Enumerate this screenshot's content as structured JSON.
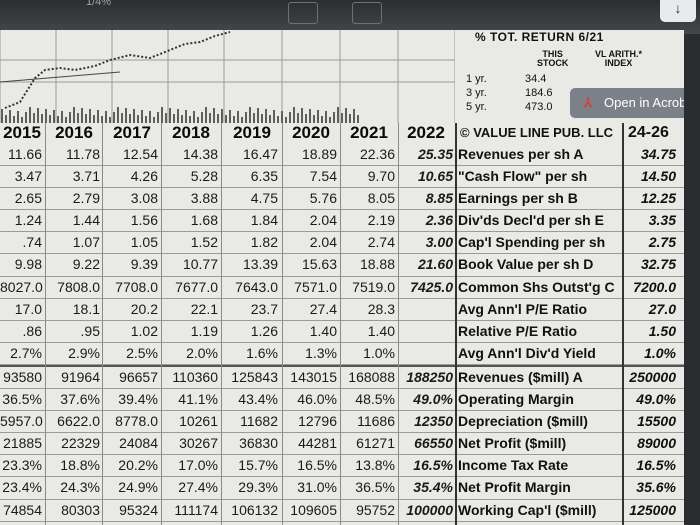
{
  "bezel": {
    "label": "1/4%"
  },
  "returns_box": {
    "title": "% TOT. RETURN 6/21",
    "col1_header": "THIS\nSTOCK",
    "col2_header": "VL ARITH.*\nINDEX",
    "rows": [
      {
        "period": "1 yr.",
        "value": "34.4"
      },
      {
        "period": "3 yr.",
        "value": "184.6"
      },
      {
        "period": "5 yr.",
        "value": "473.0"
      }
    ]
  },
  "acrobat": {
    "label": "Open in Acrob"
  },
  "years": [
    "2015",
    "2016",
    "2017",
    "2018",
    "2019",
    "2020",
    "2021",
    "2022"
  ],
  "publisher": "© VALUE LINE PUB. LLC",
  "projection_header": "24-26",
  "rows": [
    {
      "cells": [
        "11.66",
        "11.78",
        "12.54",
        "14.38",
        "16.47",
        "18.89",
        "22.36",
        "25.35"
      ],
      "label": "Revenues per sh A",
      "proj": "34.75"
    },
    {
      "cells": [
        "3.47",
        "3.71",
        "4.26",
        "5.28",
        "6.35",
        "7.54",
        "9.70",
        "10.65"
      ],
      "label": "\"Cash Flow\" per sh",
      "proj": "14.50"
    },
    {
      "cells": [
        "2.65",
        "2.79",
        "3.08",
        "3.88",
        "4.75",
        "5.76",
        "8.05",
        "8.85"
      ],
      "label": "Earnings per sh B",
      "proj": "12.25"
    },
    {
      "cells": [
        "1.24",
        "1.44",
        "1.56",
        "1.68",
        "1.84",
        "2.04",
        "2.19",
        "2.36"
      ],
      "label": "Div'ds Decl'd per sh E",
      "proj": "3.35"
    },
    {
      "cells": [
        ".74",
        "1.07",
        "1.05",
        "1.52",
        "1.82",
        "2.04",
        "2.74",
        "3.00"
      ],
      "label": "Cap'l Spending per sh",
      "proj": "2.75"
    },
    {
      "cells": [
        "9.98",
        "9.22",
        "9.39",
        "10.77",
        "13.39",
        "15.63",
        "18.88",
        "21.60"
      ],
      "label": "Book Value per sh D",
      "proj": "32.75"
    },
    {
      "cells": [
        "8027.0",
        "7808.0",
        "7708.0",
        "7677.0",
        "7643.0",
        "7571.0",
        "7519.0",
        "7425.0"
      ],
      "label": "Common Shs Outst'g C",
      "proj": "7200.0"
    },
    {
      "cells": [
        "17.0",
        "18.1",
        "20.2",
        "22.1",
        "23.7",
        "27.4",
        "28.3",
        ""
      ],
      "label": "Avg Ann'l P/E Ratio",
      "proj": "27.0"
    },
    {
      "cells": [
        ".86",
        ".95",
        "1.02",
        "1.19",
        "1.26",
        "1.40",
        "1.40",
        ""
      ],
      "label": "Relative P/E Ratio",
      "proj": "1.50"
    },
    {
      "cells": [
        "2.7%",
        "2.9%",
        "2.5%",
        "2.0%",
        "1.6%",
        "1.3%",
        "1.0%",
        ""
      ],
      "label": "Avg Ann'l Div'd Yield",
      "proj": "1.0%"
    },
    {
      "cells": [
        "93580",
        "91964",
        "96657",
        "110360",
        "125843",
        "143015",
        "168088",
        "188250"
      ],
      "label": "Revenues ($mill) A",
      "proj": "250000"
    },
    {
      "cells": [
        "36.5%",
        "37.6%",
        "39.4%",
        "41.1%",
        "43.4%",
        "46.0%",
        "48.5%",
        "49.0%"
      ],
      "label": "Operating Margin",
      "proj": "49.0%"
    },
    {
      "cells": [
        "5957.0",
        "6622.0",
        "8778.0",
        "10261",
        "11682",
        "12796",
        "11686",
        "12350"
      ],
      "label": "Depreciation ($mill)",
      "proj": "15500"
    },
    {
      "cells": [
        "21885",
        "22329",
        "24084",
        "30267",
        "36830",
        "44281",
        "61271",
        "66550"
      ],
      "label": "Net Profit ($mill)",
      "proj": "89000"
    },
    {
      "cells": [
        "23.3%",
        "18.8%",
        "20.2%",
        "17.0%",
        "15.7%",
        "16.5%",
        "13.8%",
        "16.5%"
      ],
      "label": "Income Tax Rate",
      "proj": "16.5%"
    },
    {
      "cells": [
        "23.4%",
        "24.3%",
        "24.9%",
        "27.4%",
        "29.3%",
        "31.0%",
        "36.5%",
        "35.4%"
      ],
      "label": "Net Profit Margin",
      "proj": "35.6%"
    },
    {
      "cells": [
        "74854",
        "80303",
        "95324",
        "111174",
        "106132",
        "109605",
        "95752",
        "100000"
      ],
      "label": "Working Cap'l ($mill)",
      "proj": "125000"
    }
  ]
}
